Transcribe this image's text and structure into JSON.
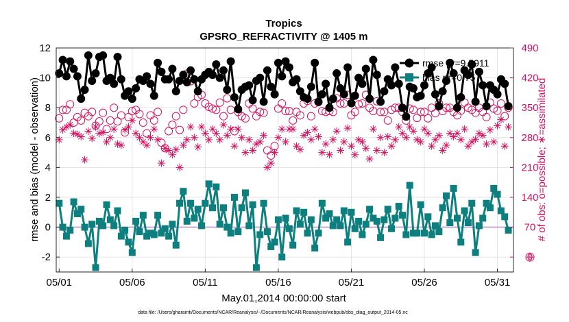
{
  "chart_data": {
    "type": "line",
    "title": "Tropics",
    "subtitle": "GPSRO_REFRACTIVITY @ 1405 m",
    "xlabel": "May.01,2014 00:00:00 start",
    "ylabel": "rmse and bias (model - observation)",
    "ylabel_right": "# of obs: o=possible; ∗=assimilated",
    "footer": "data file: /Users/gharamti/Documents/NCAR/Reanalysis/~/Documents/NCAR/Reanalysis/webpub/obs_diag_output_2014-05.nc",
    "x_tick_labels": [
      "05/01",
      "05/06",
      "05/11",
      "05/16",
      "05/21",
      "05/26",
      "05/31"
    ],
    "x_ticks_day": [
      1,
      6,
      11,
      16,
      21,
      26,
      31
    ],
    "xlim_day": [
      0.8,
      32.1
    ],
    "ylim": [
      -3,
      12
    ],
    "y_ticks": [
      -2,
      0,
      2,
      4,
      6,
      8,
      10,
      12
    ],
    "ylim_right": [
      -35,
      490
    ],
    "y_ticks_right": [
      0,
      70,
      140,
      210,
      280,
      350,
      420,
      490
    ],
    "zero_line": 0,
    "x_day": [
      1.0,
      1.25,
      1.5,
      1.75,
      2.0,
      2.25,
      2.5,
      2.75,
      3.0,
      3.25,
      3.5,
      3.75,
      4.0,
      4.25,
      4.5,
      4.75,
      5.0,
      5.25,
      5.5,
      5.75,
      6.0,
      6.25,
      6.5,
      6.75,
      7.0,
      7.25,
      7.5,
      7.75,
      8.0,
      8.25,
      8.5,
      8.75,
      9.0,
      9.25,
      9.5,
      9.75,
      10.0,
      10.25,
      10.5,
      10.75,
      11.0,
      11.25,
      11.5,
      11.75,
      12.0,
      12.25,
      12.5,
      12.75,
      13.0,
      13.25,
      13.5,
      13.75,
      14.0,
      14.25,
      14.5,
      14.75,
      15.0,
      15.25,
      15.5,
      15.75,
      16.0,
      16.25,
      16.5,
      16.75,
      17.0,
      17.25,
      17.5,
      17.75,
      18.0,
      18.25,
      18.5,
      18.75,
      19.0,
      19.25,
      19.5,
      19.75,
      20.0,
      20.25,
      20.5,
      20.75,
      21.0,
      21.25,
      21.5,
      21.75,
      22.0,
      22.25,
      22.5,
      22.75,
      23.0,
      23.25,
      23.5,
      23.75,
      24.0,
      24.25,
      24.5,
      24.75,
      25.0,
      25.25,
      25.5,
      25.75,
      26.0,
      26.25,
      26.5,
      26.75,
      27.0,
      27.25,
      27.5,
      27.75,
      28.0,
      28.25,
      28.5,
      28.75,
      29.0,
      29.25,
      29.5,
      29.75,
      30.0,
      30.25,
      30.5,
      30.75,
      31.0,
      31.25,
      31.5,
      31.75
    ],
    "series": [
      {
        "name": "rmse",
        "legend": "rmse pr=9.5911",
        "axis": "left",
        "color": "#000000",
        "marker": "circle-filled",
        "values": [
          10.3,
          11.2,
          10.1,
          11.1,
          10.6,
          10.1,
          8.6,
          9.2,
          11.5,
          9.8,
          10.3,
          11.4,
          11.5,
          9.8,
          10.0,
          9.6,
          11.4,
          9.9,
          8.8,
          9.1,
          8.6,
          9.3,
          9.9,
          9.8,
          10.1,
          9.6,
          8.8,
          11.0,
          10.4,
          9.9,
          9.9,
          10.6,
          9.1,
          9.8,
          10.2,
          9.7,
          10.5,
          9.9,
          9.1,
          9.9,
          10.2,
          10.4,
          10.2,
          10.9,
          10.0,
          10.5,
          9.2,
          11.1,
          8.7,
          7.9,
          9.2,
          9.4,
          9.5,
          8.5,
          9.8,
          10.0,
          8.4,
          10.5,
          9.4,
          8.9,
          11.0,
          10.1,
          11.1,
          10.7,
          9.7,
          9.9,
          9.1,
          8.7,
          8.6,
          9.4,
          11.0,
          8.4,
          8.9,
          9.6,
          8.0,
          8.6,
          10.3,
          9.3,
          8.9,
          10.7,
          8.3,
          8.8,
          10.0,
          9.6,
          10.6,
          8.6,
          11.2,
          10.2,
          8.4,
          9.1,
          9.9,
          9.5,
          10.7,
          9.6,
          8.0,
          7.4,
          9.4,
          9.3,
          8.7,
          8.8,
          9.5,
          10.3,
          10.7,
          8.9,
          8.1,
          9.1,
          9.8,
          11.0,
          10.3,
          8.0,
          8.7,
          10.5,
          10.2,
          10.9,
          8.4,
          10.4,
          9.5,
          8.1,
          9.5,
          9.2,
          8.9,
          9.9,
          9.6,
          8.1
        ]
      },
      {
        "name": "bias",
        "legend": "bias pr=0.75",
        "axis": "left",
        "color": "#0e7f7f",
        "marker": "square-filled",
        "values": [
          1.6,
          0.0,
          -0.6,
          -0.2,
          1.7,
          0.9,
          1.2,
          0.0,
          -1.1,
          0.2,
          -2.7,
          0.4,
          0.1,
          1.5,
          0.5,
          0.1,
          1.1,
          -0.6,
          -0.2,
          -1.0,
          -1.7,
          0.4,
          -0.3,
          0.8,
          -0.6,
          -0.4,
          -0.5,
          0.8,
          -0.4,
          -0.1,
          -0.6,
          0.2,
          -1.2,
          1.6,
          2.4,
          0.4,
          1.6,
          0.6,
          1.2,
          0.1,
          1.6,
          2.9,
          1.3,
          2.7,
          0.2,
          1.3,
          0.0,
          -0.4,
          2.0,
          -0.3,
          1.3,
          2.3,
          0.1,
          1.5,
          -2.7,
          -0.5,
          1.6,
          -0.3,
          -1.3,
          -1.0,
          0.5,
          -2.0,
          0.6,
          -0.1,
          -1.2,
          1.1,
          0.2,
          1.0,
          -0.4,
          0.5,
          -1.4,
          -0.4,
          1.6,
          0.6,
          0.9,
          0.1,
          0.5,
          0.1,
          1.1,
          -1.0,
          1.0,
          -0.1,
          0.4,
          -0.5,
          0.2,
          1.2,
          0.6,
          0.4,
          -0.7,
          0.5,
          1.2,
          -0.1,
          0.6,
          1.4,
          0.8,
          -0.5,
          2.8,
          -0.4,
          -0.4,
          1.5,
          -0.4,
          0.7,
          -0.5,
          0.1,
          -0.3,
          1.3,
          2.1,
          0.3,
          2.6,
          0.6,
          -1.0,
          1.1,
          0.3,
          1.6,
          -1.7,
          0.1,
          0.6,
          1.6,
          1.3,
          2.6,
          2.2,
          1.1,
          0.7,
          -0.2
        ]
      },
      {
        "name": "possible",
        "legend": "possible",
        "axis": "right",
        "color": "#d6105f",
        "marker": "circle-open",
        "values": [
          325,
          345,
          345,
          358,
          315,
          328,
          320,
          338,
          330,
          340,
          308,
          318,
          338,
          300,
          320,
          350,
          318,
          332,
          292,
          328,
          342,
          345,
          335,
          315,
          290,
          332,
          320,
          340,
          268,
          255,
          295,
          310,
          330,
          298,
          345,
          430,
          412,
          360,
          375,
          380,
          360,
          352,
          348,
          345,
          362,
          330,
          372,
          345,
          295,
          340,
          330,
          325,
          360,
          348,
          330,
          340,
          338,
          250,
          238,
          260,
          348,
          360,
          342,
          342,
          320,
          340,
          332,
          360,
          366,
          330,
          360,
          363,
          342,
          340,
          342,
          340,
          372,
          360,
          360,
          380,
          332,
          340,
          358,
          360,
          380,
          350,
          342,
          365,
          340,
          340,
          320,
          345,
          350,
          350,
          340,
          320,
          348,
          345,
          326,
          340,
          340,
          325,
          350,
          337,
          360,
          342,
          350,
          350,
          340,
          332,
          343,
          362,
          350,
          345,
          338,
          350,
          340,
          328,
          362,
          348,
          343,
          360,
          330,
          350
        ]
      },
      {
        "name": "assimilated",
        "legend": "assimilated",
        "axis": "right",
        "color": "#d6105f",
        "marker": "asterisk",
        "values": [
          275,
          298,
          305,
          310,
          290,
          288,
          282,
          228,
          295,
          278,
          305,
          290,
          292,
          270,
          280,
          300,
          265,
          262,
          298,
          305,
          320,
          290,
          280,
          270,
          262,
          280,
          300,
          275,
          220,
          255,
          250,
          240,
          252,
          210,
          262,
          275,
          305,
          280,
          258,
          305,
          290,
          275,
          300,
          290,
          275,
          310,
          285,
          300,
          260,
          300,
          280,
          245,
          275,
          250,
          265,
          270,
          285,
          210,
          220,
          245,
          280,
          300,
          270,
          300,
          300,
          260,
          252,
          285,
          292,
          275,
          300,
          282,
          245,
          265,
          240,
          275,
          295,
          250,
          270,
          302,
          260,
          240,
          275,
          270,
          255,
          230,
          300,
          250,
          280,
          245,
          282,
          260,
          275,
          305,
          290,
          280,
          305,
          295,
          275,
          270,
          300,
          290,
          260,
          275,
          285,
          250,
          262,
          290,
          282,
          290,
          275,
          300,
          260,
          270,
          276,
          290,
          285,
          265,
          298,
          270,
          308,
          322,
          260,
          305
        ]
      }
    ],
    "right_axis_outlier": {
      "label": "0",
      "value": 0,
      "marker": "circle-plus"
    }
  }
}
